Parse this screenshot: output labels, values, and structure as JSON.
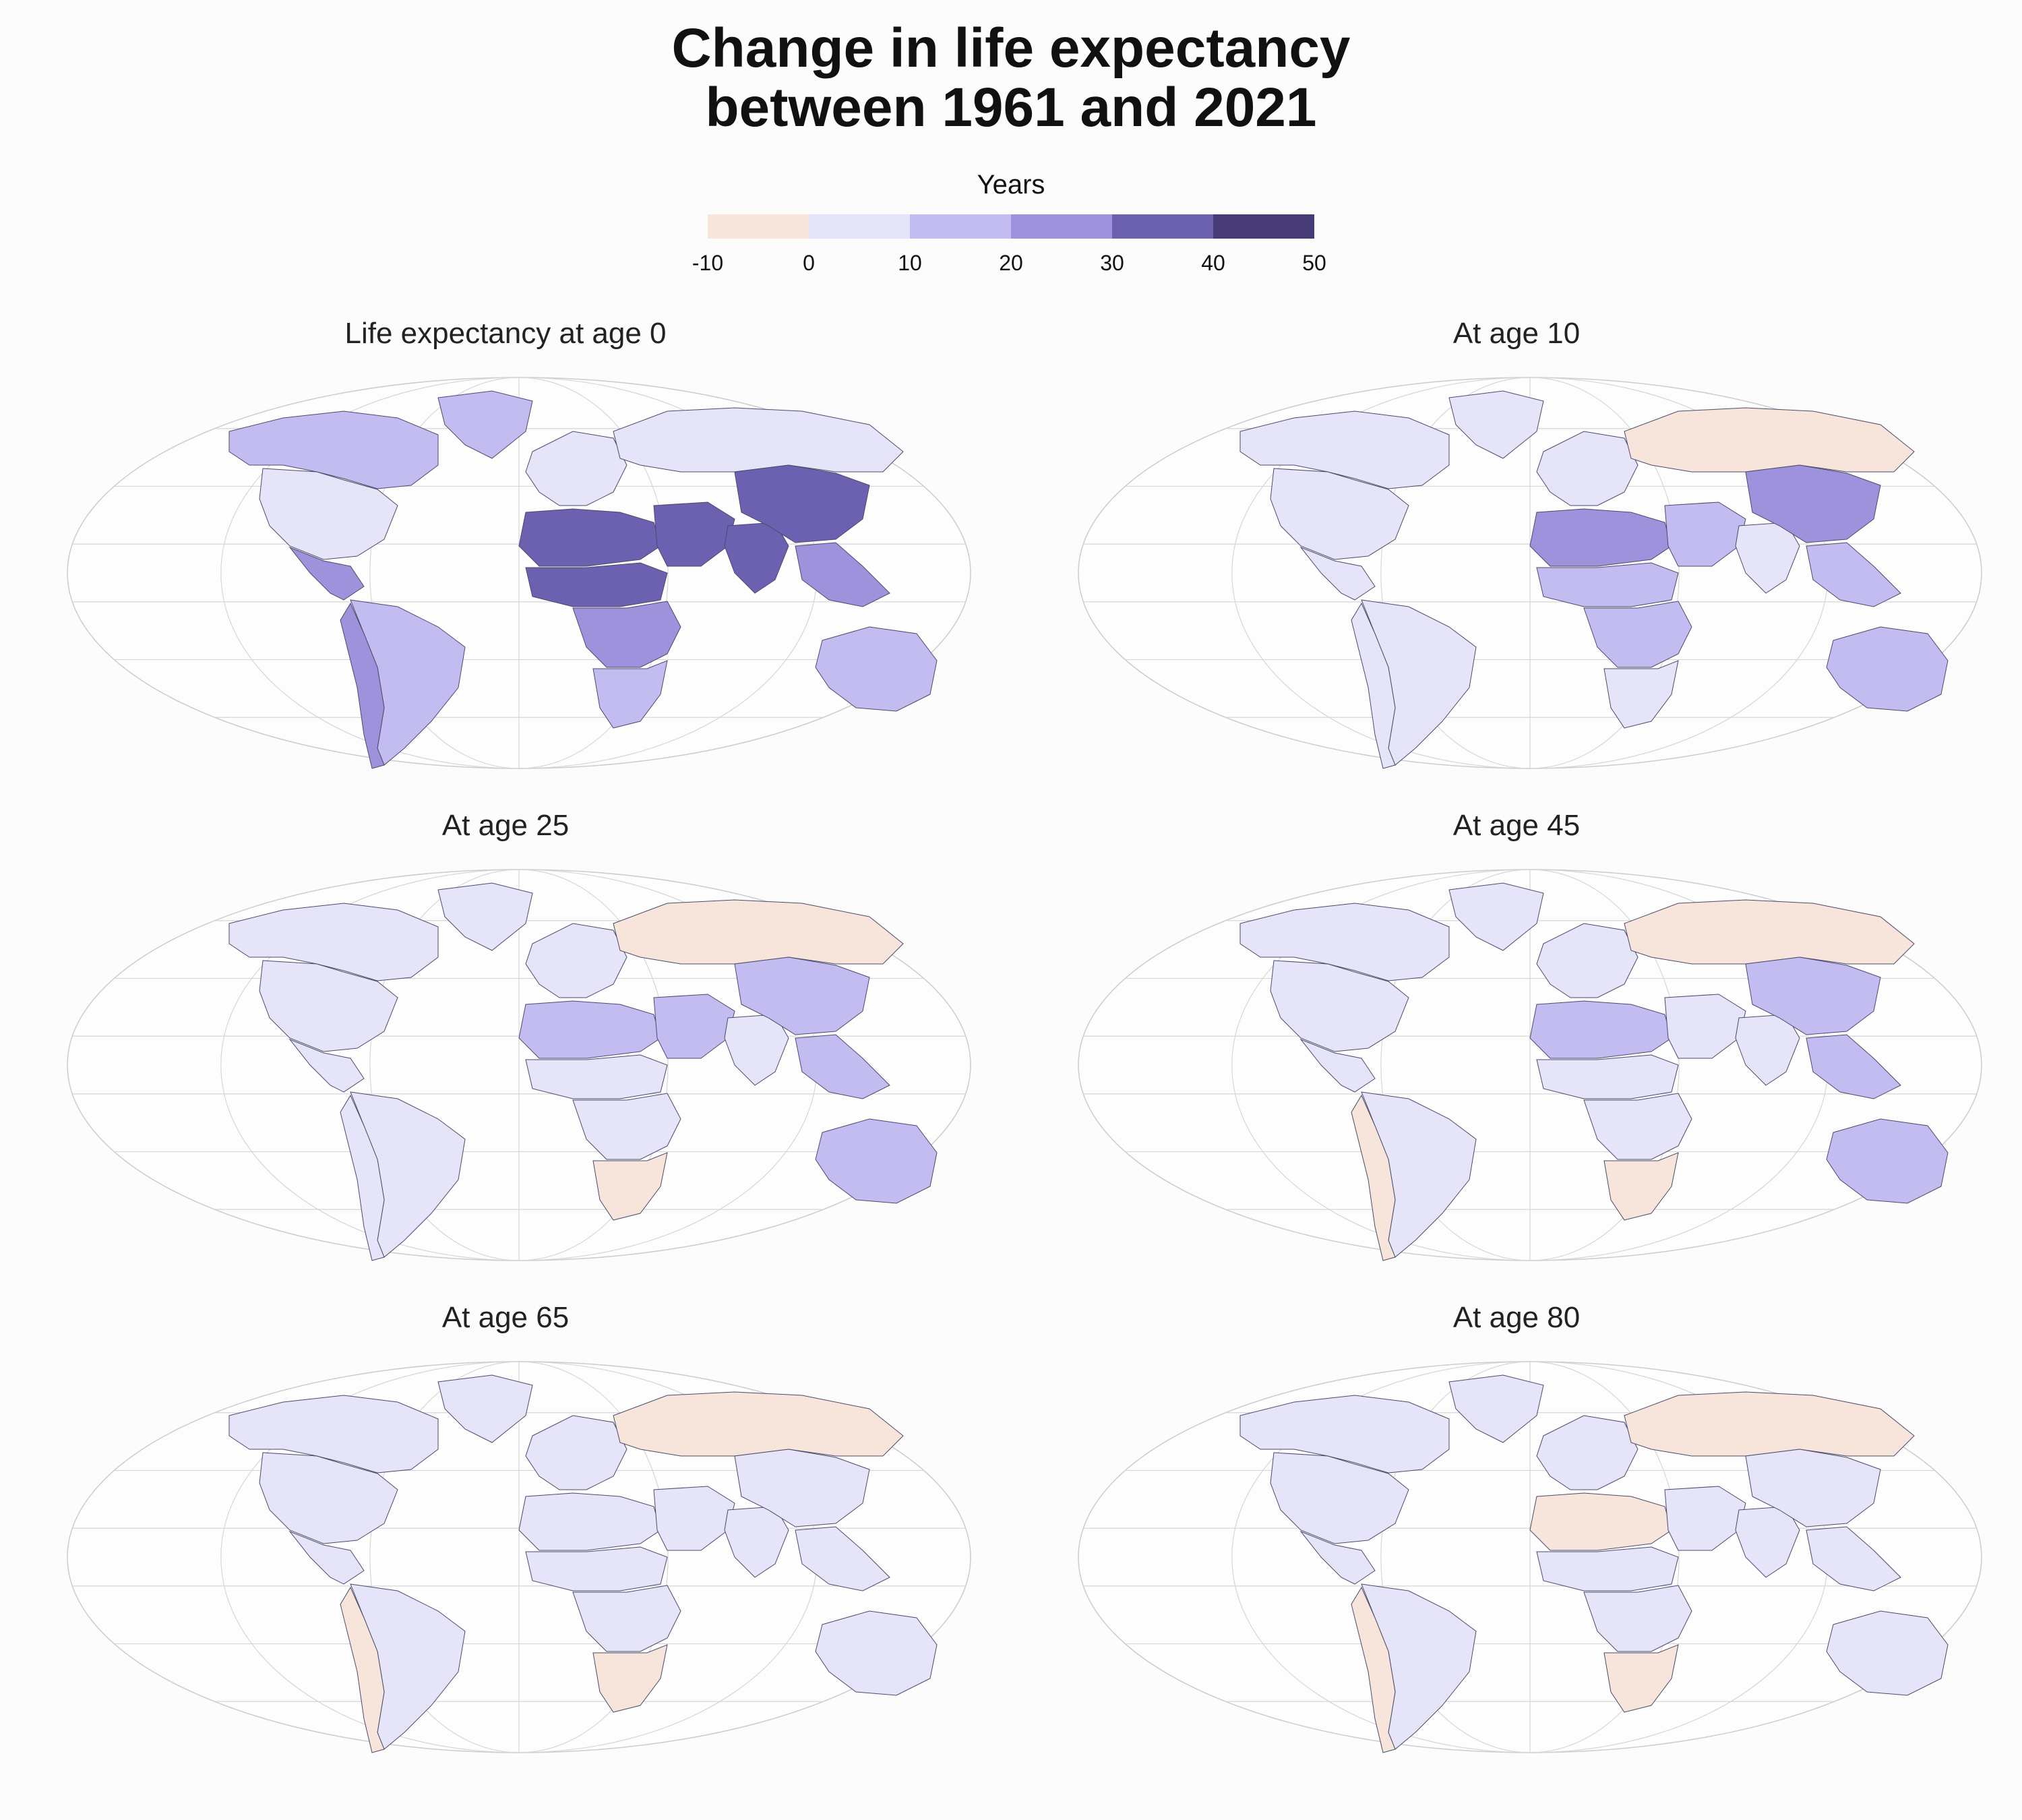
{
  "title_line1": "Change in life expectancy",
  "title_line2": "between 1961 and 2021",
  "legend": {
    "title": "Years",
    "ticks": [
      "-10",
      "0",
      "10",
      "20",
      "30",
      "40",
      "50"
    ],
    "bins": [
      {
        "range": [
          -10,
          0
        ],
        "color": "#f7e4da"
      },
      {
        "range": [
          0,
          10
        ],
        "color": "#e6e4f8"
      },
      {
        "range": [
          10,
          20
        ],
        "color": "#c3bcf0"
      },
      {
        "range": [
          20,
          30
        ],
        "color": "#9d92db"
      },
      {
        "range": [
          30,
          40
        ],
        "color": "#6c61b0"
      },
      {
        "range": [
          40,
          50
        ],
        "color": "#463b75"
      }
    ]
  },
  "panels": [
    {
      "title": "Life expectancy at age 0",
      "regions": {
        "north_america": 10,
        "usa": 5,
        "central_america": 20,
        "south_america": 15,
        "andes": 25,
        "europe": 5,
        "russia": 5,
        "north_africa": 35,
        "sahel": 35,
        "central_africa": 25,
        "southern_africa": 10,
        "middle_east": 35,
        "south_asia": 30,
        "china": 35,
        "southeast_asia": 25,
        "australia": 15,
        "greenland": 15
      }
    },
    {
      "title": "At age 10",
      "regions": {
        "north_america": 5,
        "usa": 5,
        "central_america": 5,
        "south_america": 5,
        "andes": 5,
        "europe": 5,
        "russia": -5,
        "north_africa": 20,
        "sahel": 15,
        "central_africa": 10,
        "southern_africa": 5,
        "middle_east": 15,
        "south_asia": 5,
        "china": 25,
        "southeast_asia": 15,
        "australia": 15,
        "greenland": 5
      }
    },
    {
      "title": "At age 25",
      "regions": {
        "north_america": 5,
        "usa": 5,
        "central_america": 5,
        "south_america": 5,
        "andes": 5,
        "europe": 5,
        "russia": -5,
        "north_africa": 15,
        "sahel": 5,
        "central_africa": 5,
        "southern_africa": -5,
        "middle_east": 15,
        "south_asia": 5,
        "china": 15,
        "southeast_asia": 15,
        "australia": 15,
        "greenland": 5
      }
    },
    {
      "title": "At age 45",
      "regions": {
        "north_america": 5,
        "usa": 5,
        "central_america": 5,
        "south_america": 5,
        "andes": -5,
        "europe": 5,
        "russia": -5,
        "north_africa": 15,
        "sahel": 5,
        "central_africa": 5,
        "southern_africa": -5,
        "middle_east": 5,
        "south_asia": 5,
        "china": 15,
        "southeast_asia": 15,
        "australia": 15,
        "greenland": 5
      }
    },
    {
      "title": "At age 65",
      "regions": {
        "north_america": 5,
        "usa": 5,
        "central_america": 5,
        "south_america": 5,
        "andes": -5,
        "europe": 5,
        "russia": -5,
        "north_africa": 5,
        "sahel": 5,
        "central_africa": 5,
        "southern_africa": -5,
        "middle_east": 5,
        "south_asia": 5,
        "china": 5,
        "southeast_asia": 5,
        "australia": 5,
        "greenland": 5
      }
    },
    {
      "title": "At age 80",
      "regions": {
        "north_america": 5,
        "usa": 5,
        "central_america": 5,
        "south_america": 5,
        "andes": -5,
        "europe": 5,
        "russia": -5,
        "north_africa": -5,
        "sahel": 5,
        "central_africa": 5,
        "southern_africa": -5,
        "middle_east": 5,
        "south_asia": 5,
        "china": 5,
        "southeast_asia": 5,
        "australia": 5,
        "greenland": 5
      }
    }
  ]
}
